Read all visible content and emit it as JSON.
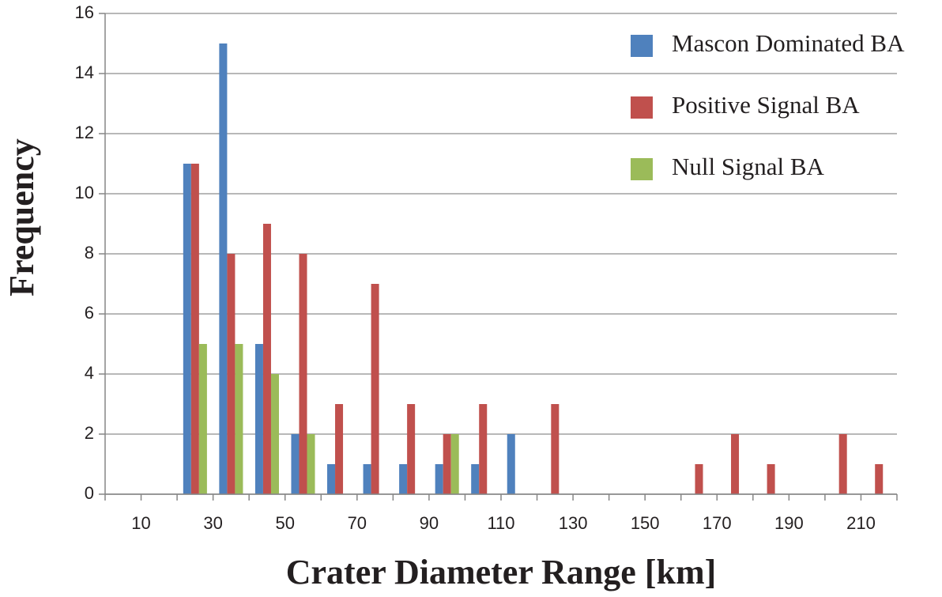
{
  "chart_data": {
    "type": "bar",
    "x_label": "Crater Diameter Range [km]",
    "y_label": "Frequency",
    "categories": [
      "10",
      null,
      "30",
      null,
      "50",
      null,
      "70",
      null,
      "90",
      null,
      "110",
      null,
      "130",
      null,
      "150",
      null,
      "170",
      null,
      "190",
      null,
      "210",
      null
    ],
    "series": [
      {
        "name": "Mascon Dominated BA",
        "color": "#4f81bd",
        "values": [
          0,
          0,
          11,
          15,
          5,
          2,
          1,
          1,
          1,
          1,
          1,
          2,
          0,
          0,
          0,
          0,
          0,
          0,
          0,
          0,
          0,
          0
        ]
      },
      {
        "name": "Positive Signal BA",
        "color": "#c0504d",
        "values": [
          0,
          0,
          11,
          8,
          9,
          8,
          3,
          7,
          3,
          2,
          3,
          0,
          3,
          0,
          0,
          0,
          1,
          2,
          1,
          0,
          2,
          1
        ]
      },
      {
        "name": "Null Signal BA",
        "color": "#9bbb59",
        "values": [
          0,
          0,
          5,
          5,
          4,
          2,
          0,
          0,
          0,
          2,
          0,
          0,
          0,
          0,
          0,
          0,
          0,
          0,
          0,
          0,
          0,
          0
        ]
      }
    ],
    "ylim": [
      0,
      16
    ],
    "yticks": [
      0,
      2,
      4,
      6,
      8,
      10,
      12,
      14,
      16
    ],
    "grid": true,
    "legend": "top-right"
  }
}
